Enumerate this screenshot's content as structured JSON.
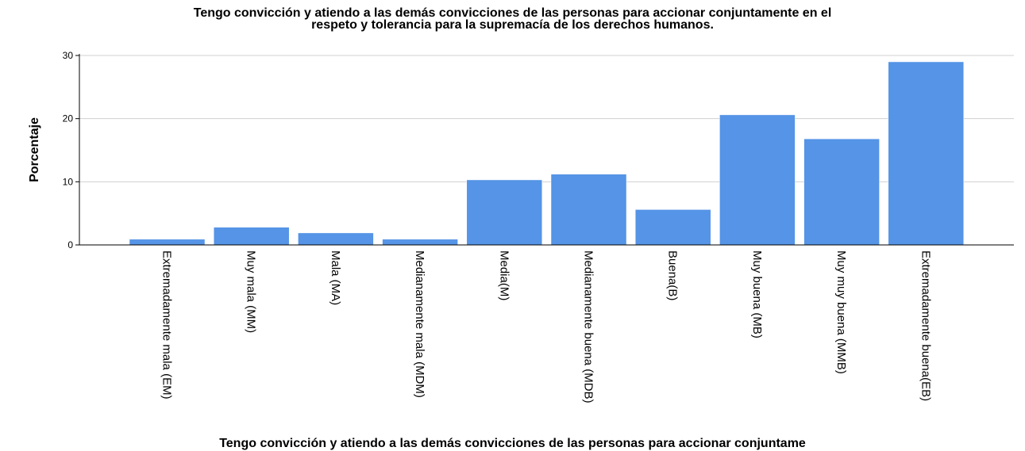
{
  "chart_data": {
    "type": "bar",
    "title_lines": [
      "Tengo convicción y atiendo a las demás convicciones de las personas para accionar conjuntamente en el",
      "respeto y tolerancia para la supremacía de los derechos humanos."
    ],
    "xlabel": "Tengo convicción y atiendo a las demás convicciones de las personas para accionar conjuntame",
    "ylabel": "Porcentaje",
    "categories": [
      "Extremadamente mala (EM)",
      "Muy mala (MM)",
      "Mala (MA)",
      "Medianamente mala (MDM)",
      "Media(M)",
      "Medianamente buena (MDB)",
      "Buena(B)",
      "Muy buena (MB)",
      "Muy muy buena (MMB)",
      "Extremadamente buena(EB)"
    ],
    "values": [
      0.9,
      2.8,
      1.9,
      0.9,
      10.3,
      11.2,
      5.6,
      20.6,
      16.8,
      29.0
    ],
    "ylim": [
      0,
      30
    ],
    "yticks": [
      0,
      10,
      20,
      30
    ],
    "grid": true,
    "bar_color": "#5594e6"
  }
}
